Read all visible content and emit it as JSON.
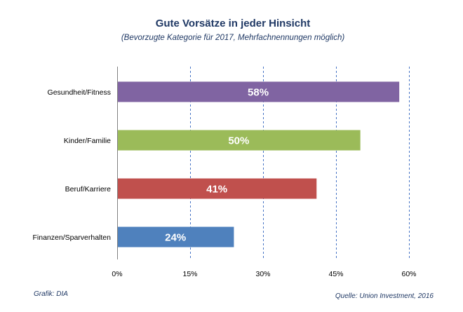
{
  "colors": {
    "title": "#1f3864",
    "grid": "#4472c4",
    "axis": "#808080",
    "data_label": "#ffffff"
  },
  "footer": {
    "left": "Grafik: DIA",
    "right": "Quelle: Union Investment, 2016"
  },
  "chart_data": {
    "type": "bar",
    "orientation": "horizontal",
    "title": "Gute Vorsätze in jeder Hinsicht",
    "subtitle": "(Bevorzugte Kategorie für 2017, Mehrfachnennungen möglich)",
    "xlabel": "",
    "ylabel": "",
    "categories": [
      "Gesundheit/Fitness",
      "Kinder/Familie",
      "Beruf/Karriere",
      "Finanzen/Sparverhalten"
    ],
    "values": [
      58,
      50,
      41,
      24
    ],
    "data_labels": [
      "58%",
      "50%",
      "41%",
      "24%"
    ],
    "bar_colors": [
      "#8064a2",
      "#9bbb59",
      "#c0504d",
      "#4f81bd"
    ],
    "xlim": [
      0,
      60
    ],
    "xticks": [
      0,
      15,
      30,
      45,
      60
    ],
    "xtick_labels": [
      "0%",
      "15%",
      "30%",
      "45%",
      "60%"
    ],
    "grid": true,
    "legend": false
  }
}
